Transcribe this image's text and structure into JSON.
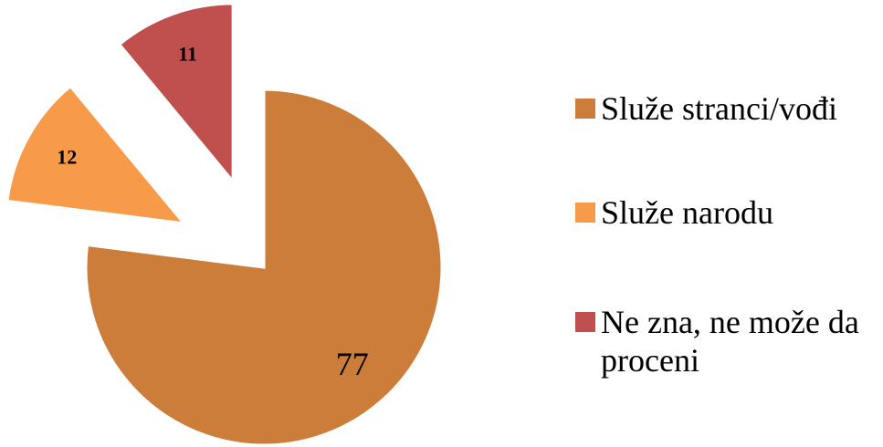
{
  "chart_data": {
    "type": "pie",
    "categories": [
      "Služe stranci/vođi",
      "Služe narodu",
      "Ne zna, ne može da proceni"
    ],
    "values": [
      77,
      12,
      11
    ],
    "colors": [
      "#cd7d3a",
      "#f79a4a",
      "#c0504d"
    ],
    "legend": "right"
  }
}
